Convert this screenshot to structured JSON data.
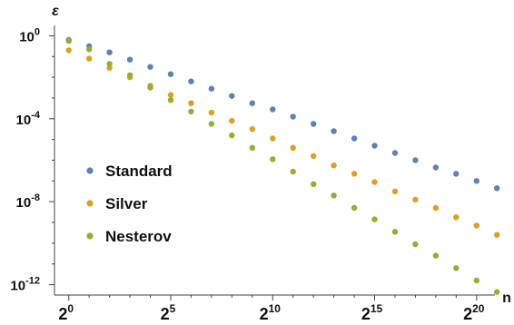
{
  "chart_data": {
    "type": "scatter",
    "title": "",
    "xlabel": "n",
    "ylabel": "ε",
    "x_scale": "log2",
    "y_scale": "log10",
    "xlim_log2": [
      -0.7,
      20.9
    ],
    "ylim_log10": [
      -12.5,
      0.5
    ],
    "x_tick_base": "2",
    "x_tick_exponents": [
      "0",
      "5",
      "10",
      "15",
      "20"
    ],
    "y_tick_base": "10",
    "y_tick_exponents": [
      "0",
      "-4",
      "-8",
      "-12"
    ],
    "grid": false,
    "legend": "left-middle",
    "series": [
      {
        "name": "Standard",
        "color": "#5E81B5",
        "log2_n": [
          0,
          1,
          2,
          3,
          4,
          5,
          6,
          7,
          8,
          9,
          10,
          11,
          12,
          13,
          14,
          15,
          16,
          17,
          18,
          19,
          20,
          21
        ],
        "log10_eps": [
          -0.2,
          -0.5,
          -0.8,
          -1.15,
          -1.5,
          -1.85,
          -2.2,
          -2.55,
          -2.9,
          -3.25,
          -3.55,
          -3.9,
          -4.25,
          -4.6,
          -4.95,
          -5.3,
          -5.65,
          -6.0,
          -6.35,
          -6.65,
          -7.0,
          -7.35
        ]
      },
      {
        "name": "Silver",
        "color": "#E19C24",
        "log2_n": [
          0,
          1,
          2,
          3,
          4,
          5,
          6,
          7,
          8,
          9,
          10,
          11,
          12,
          13,
          14,
          15,
          16,
          17,
          18,
          19,
          20,
          21
        ],
        "log10_eps": [
          -0.7,
          -1.1,
          -1.55,
          -2.0,
          -2.4,
          -2.85,
          -3.25,
          -3.7,
          -4.1,
          -4.5,
          -4.95,
          -5.4,
          -5.8,
          -6.25,
          -6.65,
          -7.05,
          -7.5,
          -7.9,
          -8.3,
          -8.75,
          -9.15,
          -9.6
        ]
      },
      {
        "name": "Nesterov",
        "color": "#8FB032",
        "log2_n": [
          0,
          1,
          2,
          3,
          4,
          5,
          6,
          7,
          8,
          9,
          10,
          11,
          12,
          13,
          14,
          15,
          16,
          17,
          18,
          19,
          20,
          21
        ],
        "log10_eps": [
          -0.25,
          -0.65,
          -1.35,
          -1.9,
          -2.5,
          -3.1,
          -3.65,
          -4.25,
          -4.8,
          -5.4,
          -5.95,
          -6.55,
          -7.15,
          -7.7,
          -8.3,
          -8.85,
          -9.45,
          -10.05,
          -10.6,
          -11.2,
          -11.8,
          -12.35
        ]
      }
    ]
  }
}
